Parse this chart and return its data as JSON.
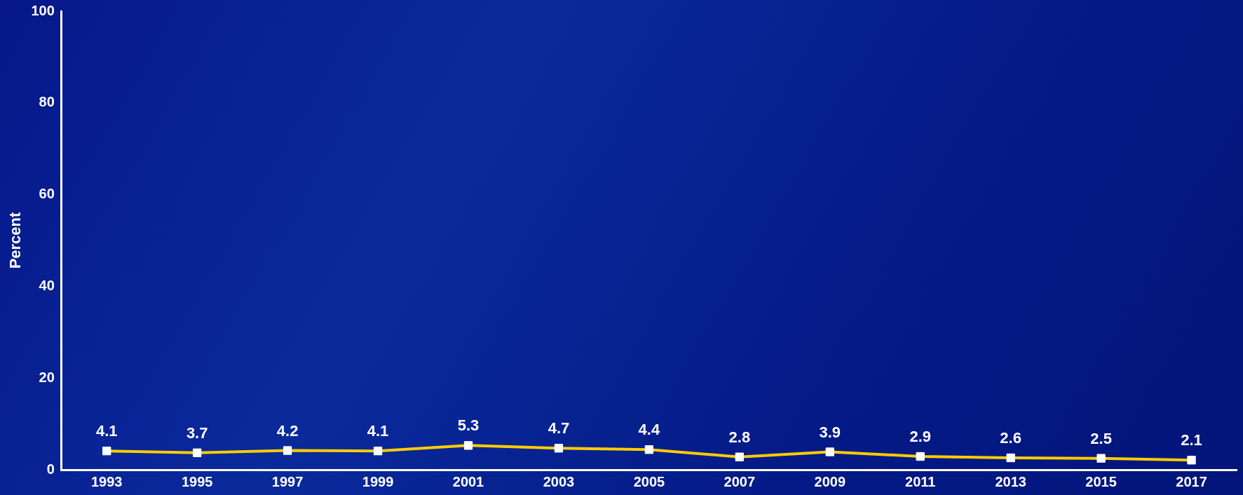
{
  "chart_data": {
    "type": "line",
    "ylabel": "Percent",
    "categories": [
      "1993",
      "1995",
      "1997",
      "1999",
      "2001",
      "2003",
      "2005",
      "2007",
      "2009",
      "2011",
      "2013",
      "2015",
      "2017"
    ],
    "series": [
      {
        "color": "#ffcc00",
        "values": [
          4.1,
          3.7,
          4.2,
          4.1,
          5.3,
          4.7,
          4.4,
          2.8,
          3.9,
          2.9,
          2.6,
          2.5,
          2.1
        ]
      }
    ],
    "ylim": [
      0,
      100
    ],
    "yticks": [
      0,
      20,
      40,
      60,
      80,
      100
    ],
    "grid": false,
    "legend": false,
    "marker": "square",
    "line_style": "solid",
    "data_labels": true
  }
}
